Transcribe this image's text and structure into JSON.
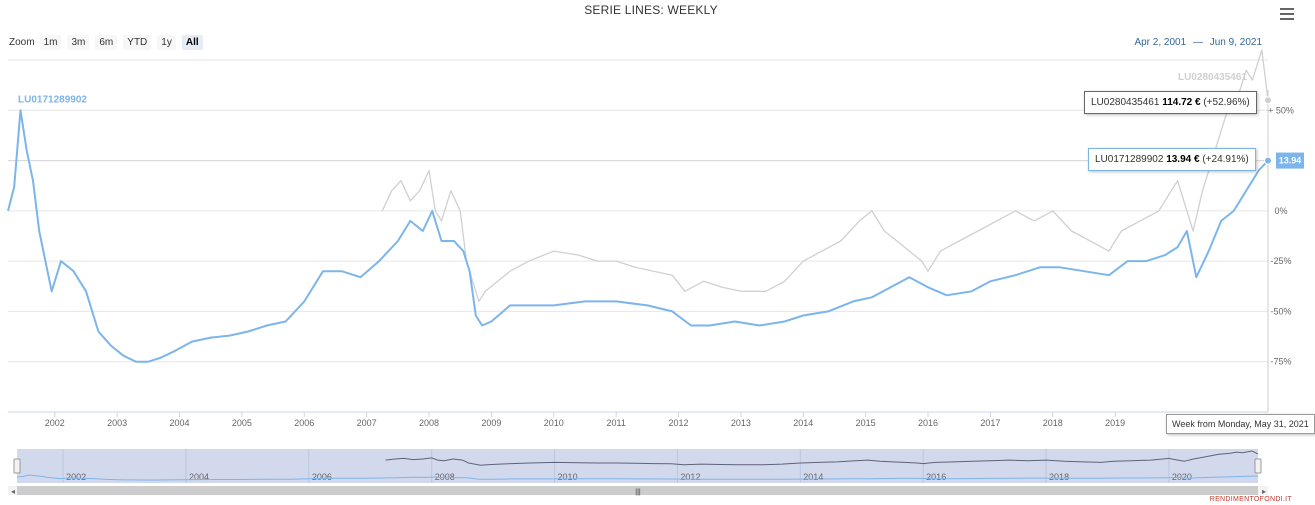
{
  "header": {
    "title": "SERIE LINES: WEEKLY",
    "zoom_label": "Zoom",
    "zoom_buttons": [
      "1m",
      "3m",
      "6m",
      "YTD",
      "1y",
      "All"
    ],
    "active_zoom": "All",
    "range_from": "Apr 2, 2001",
    "range_sep": "—",
    "range_to": "Jun 9, 2021"
  },
  "tooltip_gray": {
    "name": "LU0280435461",
    "value": "114.72 €",
    "change": "(+52.96%)"
  },
  "tooltip_blue": {
    "name": "LU0171289902",
    "value": "13.94 €",
    "change": "(+24.91%)"
  },
  "tooltip_date": "Week from Monday, May 31, 2021",
  "current_value_label": "13.94",
  "credits": "RENDIMENTOFONDI.IT",
  "colors": {
    "blue": "#7cb5ec",
    "gray": "#d0d0d0",
    "nav_mask": "#cdd5ea"
  },
  "chart_data": {
    "type": "line",
    "y_axis_labels": [
      "+ 50%",
      "0%",
      "-25%",
      "-50%",
      "-75%"
    ],
    "x_axis_labels": [
      "2002",
      "2003",
      "2004",
      "2005",
      "2006",
      "2007",
      "2008",
      "2009",
      "2010",
      "2011",
      "2012",
      "2013",
      "2014",
      "2015",
      "2016",
      "2017",
      "2018",
      "2019"
    ],
    "navigator_labels": [
      "2002",
      "2004",
      "2006",
      "2008",
      "2010",
      "2012",
      "2014",
      "2016",
      "2018",
      "2020"
    ],
    "y_unit": "percent change",
    "series": [
      {
        "name": "LU0171289902",
        "color": "#7cb5ec",
        "x": [
          2001.25,
          2001.35,
          2001.45,
          2001.55,
          2001.65,
          2001.75,
          2001.85,
          2001.95,
          2002.1,
          2002.3,
          2002.5,
          2002.7,
          2002.9,
          2003.1,
          2003.3,
          2003.5,
          2003.7,
          2003.9,
          2004.2,
          2004.5,
          2004.8,
          2005.1,
          2005.4,
          2005.7,
          2006.0,
          2006.3,
          2006.6,
          2006.9,
          2007.2,
          2007.5,
          2007.7,
          2007.9,
          2008.05,
          2008.2,
          2008.4,
          2008.55,
          2008.65,
          2008.75,
          2008.85,
          2009.0,
          2009.3,
          2009.6,
          2010.0,
          2010.5,
          2011.0,
          2011.5,
          2011.9,
          2012.2,
          2012.5,
          2012.9,
          2013.3,
          2013.7,
          2014.0,
          2014.4,
          2014.8,
          2015.1,
          2015.4,
          2015.7,
          2016.0,
          2016.3,
          2016.7,
          2017.0,
          2017.4,
          2017.8,
          2018.1,
          2018.5,
          2018.9,
          2019.2,
          2019.5,
          2019.8,
          2020.0,
          2020.15,
          2020.3,
          2020.5,
          2020.7,
          2020.9,
          2021.1,
          2021.3,
          2021.45
        ],
        "y": [
          0,
          12,
          50,
          30,
          15,
          -10,
          -25,
          -40,
          -25,
          -30,
          -40,
          -60,
          -67,
          -72,
          -75,
          -75,
          -73,
          -70,
          -65,
          -63,
          -62,
          -60,
          -57,
          -55,
          -45,
          -30,
          -30,
          -33,
          -25,
          -15,
          -5,
          -10,
          0,
          -15,
          -15,
          -20,
          -30,
          -52,
          -57,
          -55,
          -47,
          -47,
          -47,
          -45,
          -45,
          -47,
          -50,
          -57,
          -57,
          -55,
          -57,
          -55,
          -52,
          -50,
          -45,
          -43,
          -38,
          -33,
          -38,
          -42,
          -40,
          -35,
          -32,
          -28,
          -28,
          -30,
          -32,
          -25,
          -25,
          -22,
          -18,
          -10,
          -33,
          -20,
          -5,
          0,
          10,
          20,
          25
        ]
      },
      {
        "name": "LU0280435461",
        "color": "#d0d0d0",
        "x": [
          2007.25,
          2007.4,
          2007.55,
          2007.7,
          2007.85,
          2008.0,
          2008.1,
          2008.2,
          2008.35,
          2008.5,
          2008.6,
          2008.7,
          2008.8,
          2008.9,
          2009.1,
          2009.3,
          2009.6,
          2010.0,
          2010.4,
          2010.7,
          2011.0,
          2011.3,
          2011.6,
          2011.9,
          2012.1,
          2012.4,
          2012.7,
          2013.0,
          2013.4,
          2013.7,
          2014.0,
          2014.3,
          2014.6,
          2014.9,
          2015.1,
          2015.3,
          2015.5,
          2015.7,
          2015.9,
          2016.0,
          2016.2,
          2016.5,
          2016.8,
          2017.1,
          2017.4,
          2017.7,
          2018.0,
          2018.3,
          2018.6,
          2018.9,
          2019.1,
          2019.4,
          2019.7,
          2019.9,
          2020.0,
          2020.1,
          2020.25,
          2020.4,
          2020.6,
          2020.8,
          2021.0,
          2021.1,
          2021.2,
          2021.35,
          2021.45
        ],
        "y": [
          0,
          10,
          15,
          5,
          10,
          20,
          0,
          -5,
          10,
          0,
          -25,
          -35,
          -45,
          -40,
          -35,
          -30,
          -25,
          -20,
          -22,
          -25,
          -25,
          -28,
          -30,
          -32,
          -40,
          -35,
          -38,
          -40,
          -40,
          -35,
          -25,
          -20,
          -15,
          -5,
          0,
          -10,
          -15,
          -20,
          -25,
          -30,
          -20,
          -15,
          -10,
          -5,
          0,
          -5,
          0,
          -10,
          -15,
          -20,
          -10,
          -5,
          0,
          10,
          15,
          5,
          -10,
          10,
          30,
          50,
          60,
          70,
          65,
          80,
          55
        ]
      }
    ]
  }
}
